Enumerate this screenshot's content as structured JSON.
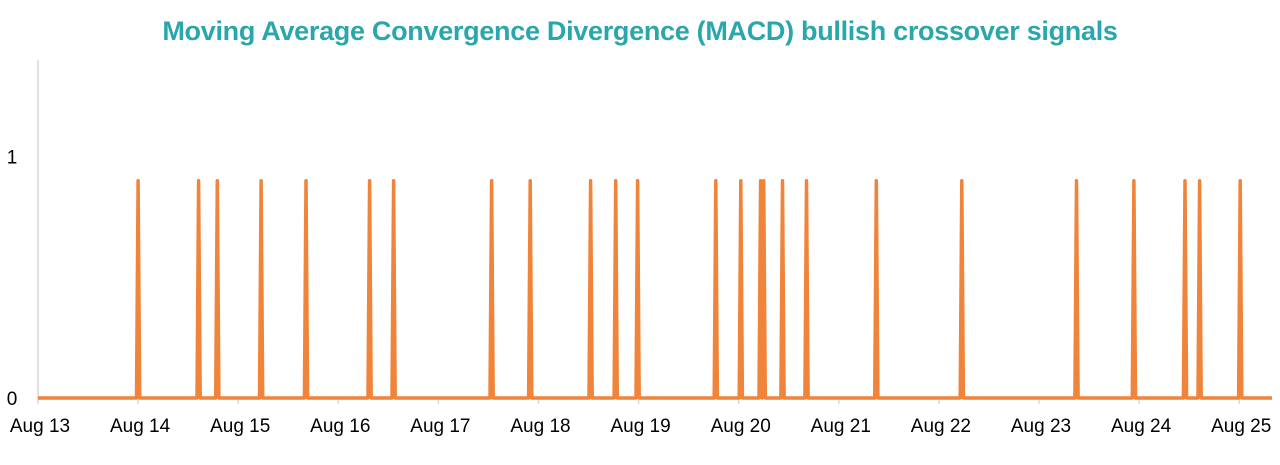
{
  "colors": {
    "title": "#2aa6ad",
    "series": "#f0843a",
    "axis": "#d9d9d9"
  },
  "chart_data": {
    "type": "line",
    "title": "Moving Average Convergence Divergence (MACD) bullish crossover signals",
    "xlabel": "",
    "ylabel": "",
    "x_ticks": [
      "Aug 13",
      "Aug 14",
      "Aug 15",
      "Aug 16",
      "Aug 17",
      "Aug 18",
      "Aug 19",
      "Aug 20",
      "Aug 21",
      "Aug 22",
      "Aug 23",
      "Aug 24",
      "Aug 25"
    ],
    "y_ticks": [
      "0",
      "1"
    ],
    "xlim": [
      "2024-08-13",
      "2024-08-25"
    ],
    "ylim": [
      0,
      1.4
    ],
    "grid": false,
    "legend": "none",
    "signal_value": 0.9,
    "signals": [
      "2024-08-14 00:00",
      "2024-08-14 14:30",
      "2024-08-14 19:00",
      "2024-08-15 05:30",
      "2024-08-15 16:15",
      "2024-08-16 07:30",
      "2024-08-16 13:15",
      "2024-08-17 12:45",
      "2024-08-17 22:00",
      "2024-08-18 12:30",
      "2024-08-18 18:30",
      "2024-08-18 23:45",
      "2024-08-19 18:30",
      "2024-08-20 00:30",
      "2024-08-20 05:15",
      "2024-08-20 06:00",
      "2024-08-20 10:30",
      "2024-08-20 16:15",
      "2024-08-21 09:00",
      "2024-08-22 05:30",
      "2024-08-23 09:00",
      "2024-08-23 22:45",
      "2024-08-24 11:00",
      "2024-08-24 14:30",
      "2024-08-25 00:15"
    ]
  }
}
